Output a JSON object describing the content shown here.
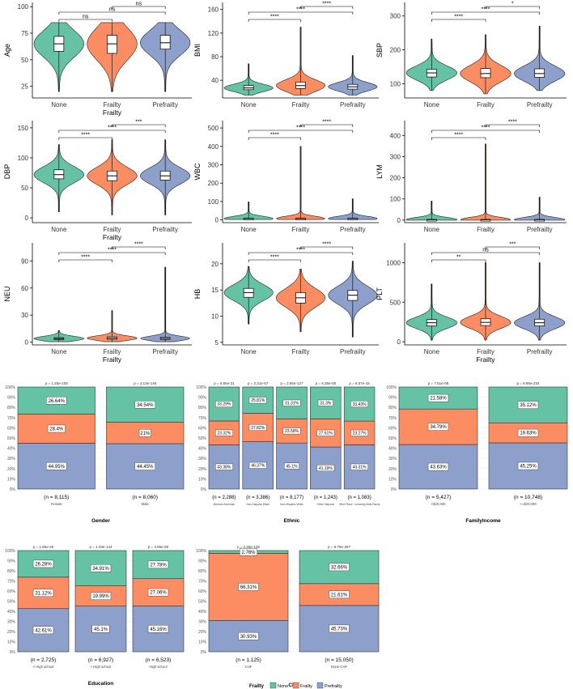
{
  "colors": {
    "none": "#66c2a5",
    "frailty": "#fc8d62",
    "prefrailty": "#8da0cb"
  },
  "legend": {
    "title": "Frailty",
    "items": [
      "None",
      "Frailty",
      "Prefrailty"
    ]
  },
  "chart_data": [
    {
      "type": "violin",
      "ylabel": "Age",
      "xlabel": "Frailty",
      "categories": [
        "None",
        "Frailty",
        "Prefrailty"
      ],
      "yticks": [
        25,
        50,
        75,
        100
      ],
      "ylim": [
        14,
        104
      ],
      "medians": [
        65,
        65,
        66
      ],
      "q1": [
        58,
        56,
        60
      ],
      "q3": [
        72,
        73,
        73
      ],
      "ranges": [
        [
          20,
          85
        ],
        [
          20,
          85
        ],
        [
          20,
          85
        ]
      ],
      "significance": [
        {
          "pair": [
            0,
            1
          ],
          "label": "ns",
          "level": 1
        },
        {
          "pair": [
            0,
            2
          ],
          "label": "ns",
          "level": 2
        },
        {
          "pair": [
            1,
            2
          ],
          "label": "ns",
          "level": 3
        }
      ]
    },
    {
      "type": "violin",
      "ylabel": "BMI",
      "xlabel": "",
      "categories": [
        "None",
        "Frailty",
        "Prefrailty"
      ],
      "yticks": [
        40,
        80,
        120,
        160
      ],
      "ylim": [
        10,
        172
      ],
      "medians": [
        27,
        31,
        29
      ],
      "q1": [
        24,
        26,
        25
      ],
      "q3": [
        31,
        37,
        33
      ],
      "ranges": [
        [
          15,
          68
        ],
        [
          15,
          130
        ],
        [
          15,
          82
        ]
      ],
      "significance": [
        {
          "pair": [
            0,
            1
          ],
          "label": "****",
          "level": 1
        },
        {
          "pair": [
            0,
            2
          ],
          "label": "****",
          "level": 2
        },
        {
          "pair": [
            1,
            2
          ],
          "label": "****",
          "level": 3
        }
      ]
    },
    {
      "type": "violin",
      "ylabel": "SBP",
      "xlabel": "",
      "categories": [
        "None",
        "Frailty",
        "Prefrailty"
      ],
      "yticks": [
        100,
        200,
        300
      ],
      "ylim": [
        58,
        340
      ],
      "medians": [
        132,
        130,
        130
      ],
      "q1": [
        120,
        118,
        119
      ],
      "q3": [
        143,
        145,
        144
      ],
      "ranges": [
        [
          80,
          232
        ],
        [
          70,
          245
        ],
        [
          80,
          270
        ]
      ],
      "significance": [
        {
          "pair": [
            0,
            1
          ],
          "label": "****",
          "level": 1
        },
        {
          "pair": [
            0,
            2
          ],
          "label": "****",
          "level": 2
        },
        {
          "pair": [
            1,
            2
          ],
          "label": "*",
          "level": 3
        }
      ]
    },
    {
      "type": "violin",
      "ylabel": "DBP",
      "xlabel": "Frailty",
      "categories": [
        "None",
        "Frailty",
        "Prefrailty"
      ],
      "yticks": [
        0,
        50,
        100,
        150
      ],
      "ylim": [
        -8,
        162
      ],
      "medians": [
        72,
        70,
        70
      ],
      "q1": [
        65,
        62,
        63
      ],
      "q3": [
        80,
        78,
        78
      ],
      "ranges": [
        [
          10,
          122
        ],
        [
          5,
          130
        ],
        [
          5,
          130
        ]
      ],
      "significance": [
        {
          "pair": [
            0,
            1
          ],
          "label": "****",
          "level": 1
        },
        {
          "pair": [
            0,
            2
          ],
          "label": "****",
          "level": 2
        },
        {
          "pair": [
            1,
            2
          ],
          "label": "***",
          "level": 3
        }
      ]
    },
    {
      "type": "violin",
      "ylabel": "WBC",
      "xlabel": "",
      "categories": [
        "None",
        "Frailty",
        "Prefrailty"
      ],
      "yticks": [
        0,
        100,
        200,
        300,
        400,
        500
      ],
      "ylim": [
        -15,
        540
      ],
      "medians": [
        7,
        7,
        7
      ],
      "q1": [
        5,
        6,
        5
      ],
      "q3": [
        9,
        9,
        9
      ],
      "ranges": [
        [
          2,
          98
        ],
        [
          2,
          400
        ],
        [
          2,
          115
        ]
      ],
      "significance": [
        {
          "pair": [
            0,
            1
          ],
          "label": "****",
          "level": 1
        },
        {
          "pair": [
            0,
            2
          ],
          "label": "****",
          "level": 2
        },
        {
          "pair": [
            1,
            2
          ],
          "label": "****",
          "level": 3
        }
      ]
    },
    {
      "type": "violin",
      "ylabel": "LYM",
      "xlabel": "",
      "categories": [
        "None",
        "Frailty",
        "Prefrailty"
      ],
      "yticks": [
        0,
        100,
        200,
        300,
        400
      ],
      "ylim": [
        -12,
        470
      ],
      "medians": [
        2,
        2,
        2
      ],
      "q1": [
        1,
        1,
        1
      ],
      "q3": [
        3,
        3,
        3
      ],
      "ranges": [
        [
          0,
          90
        ],
        [
          0,
          360
        ],
        [
          0,
          108
        ]
      ],
      "significance": [
        {
          "pair": [
            0,
            1
          ],
          "label": "****",
          "level": 1
        },
        {
          "pair": [
            0,
            2
          ],
          "label": "****",
          "level": 2
        },
        {
          "pair": [
            1,
            2
          ],
          "label": "****",
          "level": 3
        }
      ]
    },
    {
      "type": "violin",
      "ylabel": "NEU",
      "xlabel": "Frailty",
      "categories": [
        "None",
        "Frailty",
        "Prefrailty"
      ],
      "yticks": [
        0,
        30,
        60,
        90
      ],
      "ylim": [
        -3,
        110
      ],
      "medians": [
        4,
        4.5,
        4.2
      ],
      "q1": [
        3,
        3.2,
        3.1
      ],
      "q3": [
        5,
        6,
        5.5
      ],
      "ranges": [
        [
          0.5,
          13
        ],
        [
          0.5,
          35
        ],
        [
          0.5,
          83
        ]
      ],
      "significance": [
        {
          "pair": [
            0,
            1
          ],
          "label": "****",
          "level": 1
        },
        {
          "pair": [
            0,
            2
          ],
          "label": "****",
          "level": 2
        },
        {
          "pair": [
            1,
            2
          ],
          "label": "****",
          "level": 3
        }
      ]
    },
    {
      "type": "violin",
      "ylabel": "HB",
      "xlabel": "",
      "categories": [
        "None",
        "Frailty",
        "Prefrailty"
      ],
      "yticks": [
        5,
        10,
        15,
        20
      ],
      "ylim": [
        4.5,
        24
      ],
      "medians": [
        14.5,
        13.5,
        14
      ],
      "q1": [
        13.6,
        12.5,
        13
      ],
      "q3": [
        15.3,
        14.5,
        14.9
      ],
      "ranges": [
        [
          8.5,
          19.5
        ],
        [
          7,
          19
        ],
        [
          6,
          20.5
        ]
      ],
      "significance": [
        {
          "pair": [
            0,
            1
          ],
          "label": "****",
          "level": 1
        },
        {
          "pair": [
            0,
            2
          ],
          "label": "****",
          "level": 2
        },
        {
          "pair": [
            1,
            2
          ],
          "label": "****",
          "level": 3
        }
      ]
    },
    {
      "type": "violin",
      "ylabel": "PLT",
      "xlabel": "Frailty",
      "categories": [
        "None",
        "Frailty",
        "Prefrailty"
      ],
      "yticks": [
        0,
        500,
        1000
      ],
      "ylim": [
        -40,
        1250
      ],
      "medians": [
        240,
        245,
        240
      ],
      "q1": [
        200,
        205,
        200
      ],
      "q3": [
        280,
        290,
        285
      ],
      "ranges": [
        [
          20,
          730
        ],
        [
          20,
          1000
        ],
        [
          20,
          1000
        ]
      ],
      "significance": [
        {
          "pair": [
            0,
            1
          ],
          "label": "**",
          "level": 1
        },
        {
          "pair": [
            0,
            2
          ],
          "label": "ns",
          "level": 2
        },
        {
          "pair": [
            1,
            2
          ],
          "label": "***",
          "level": 3
        }
      ]
    },
    {
      "type": "stacked_bar",
      "title": "Gender",
      "yticks": [
        "0%",
        "10%",
        "20%",
        "30%",
        "40%",
        "50%",
        "60%",
        "70%",
        "80%",
        "90%",
        "100%"
      ],
      "bars": [
        {
          "label": "Female",
          "n": "(n = 8,115)",
          "p": "p = 1.26e-109",
          "prefrailty": 44.95,
          "frailty": 28.4,
          "none": 26.64,
          "prefrailty_label": "44.95%",
          "frailty_label": "28.4%",
          "none_label": "26.64%"
        },
        {
          "label": "Male",
          "n": "(n = 8,060)",
          "p": "p = 3.13e-146",
          "prefrailty": 44.45,
          "frailty": 21,
          "none": 34.54,
          "prefrailty_label": "44.45%",
          "frailty_label": "21%",
          "none_label": "34.54%"
        }
      ]
    },
    {
      "type": "stacked_bar",
      "title": "Ethnic",
      "yticks": [
        "0%",
        "10%",
        "20%",
        "30%",
        "40%",
        "50%",
        "60%",
        "70%",
        "80%",
        "90%",
        "100%"
      ],
      "bars": [
        {
          "label": "Mexican American",
          "n": "(n = 2,288)",
          "p": "p = 9.55e-31",
          "prefrailty": 43.38,
          "frailty": 23.32,
          "none": 33.29,
          "prefrailty_label": "43.38%",
          "frailty_label": "23.32%",
          "none_label": "33.29%"
        },
        {
          "label": "Non-Hispanic Black",
          "n": "(n = 3,386)",
          "p": "p = 2.21e-57",
          "prefrailty": 46.37,
          "frailty": 27.82,
          "none": 25.81,
          "prefrailty_label": "46.37%",
          "frailty_label": "27.82%",
          "none_label": "25.81%"
        },
        {
          "label": "Non-Hispanic White",
          "n": "(n = 8,177)",
          "p": "p = 2.86e-127",
          "prefrailty": 45.1,
          "frailty": 23.59,
          "none": 31.31,
          "prefrailty_label": "45.1%",
          "frailty_label": "23.59%",
          "none_label": "31.31%"
        },
        {
          "label": "Other Hispanic",
          "n": "(n = 1,243)",
          "p": "p = 6.36e-09",
          "prefrailty": 41.19,
          "frailty": 27.51,
          "none": 31.3,
          "prefrailty_label": "41.19%",
          "frailty_label": "27.51%",
          "none_label": "31.3%"
        },
        {
          "label": "Other Race - Including Multi-Racial",
          "n": "(n = 1,083)",
          "p": "p = 6.07e-15",
          "prefrailty": 43.31,
          "frailty": 23.27,
          "none": 33.43,
          "prefrailty_label": "43.31%",
          "frailty_label": "23.27%",
          "none_label": "33.43%"
        }
      ]
    },
    {
      "type": "stacked_bar",
      "title": "FamilyIncome",
      "yticks": [
        "0%",
        "10%",
        "20%",
        "30%",
        "40%",
        "50%",
        "60%",
        "70%",
        "80%",
        "90%",
        "100%"
      ],
      "bars": [
        {
          "label": "<$20,000",
          "n": "(n = 5,427)",
          "p": "p = 7.61e-08",
          "prefrailty": 43.63,
          "frailty": 34.79,
          "none": 21.58,
          "prefrailty_label": "43.63%",
          "frailty_label": "34.79%",
          "none_label": "21.58%"
        },
        {
          "label": ">=$20,000",
          "n": "(n = 10,748)",
          "p": "p = 8.98e-234",
          "prefrailty": 45.25,
          "frailty": 19.63,
          "none": 35.12,
          "prefrailty_label": "45.25%",
          "frailty_label": "19.63%",
          "none_label": "35.12%"
        }
      ]
    },
    {
      "type": "stacked_bar",
      "title": "Education",
      "yticks": [
        "0%",
        "10%",
        "20%",
        "30%",
        "40%",
        "50%",
        "60%",
        "70%",
        "80%",
        "90%",
        "100%"
      ],
      "bars": [
        {
          "label": "< High school",
          "n": "(n = 2,725)",
          "p": "p = 1.86e-25",
          "prefrailty": 42.61,
          "frailty": 31.12,
          "none": 26.28,
          "prefrailty_label": "42.61%",
          "frailty_label": "31.12%",
          "none_label": "26.28%"
        },
        {
          "label": "> High school",
          "n": "(n = 6,927)",
          "p": "p = 1.33e-144",
          "prefrailty": 45.1,
          "frailty": 19.99,
          "none": 34.91,
          "prefrailty_label": "45.1%",
          "frailty_label": "19.99%",
          "none_label": "34.91%"
        },
        {
          "label": "High school",
          "n": "(n = 6,523)",
          "p": "p = 4.86e-60",
          "prefrailty": 45.16,
          "frailty": 27.06,
          "none": 27.78,
          "prefrailty_label": "45.16%",
          "frailty_label": "27.06%",
          "none_label": "27.78%"
        }
      ]
    },
    {
      "type": "stacked_bar",
      "title": "CHF",
      "yticks": [
        "0%",
        "10%",
        "20%",
        "30%",
        "40%",
        "50%",
        "60%",
        "70%",
        "80%",
        "90%",
        "100%"
      ],
      "bars": [
        {
          "label": "CHF",
          "n": "(n = 1,125)",
          "p": "p = 2.25e-145",
          "prefrailty": 30.93,
          "frailty": 66.31,
          "none": 2.76,
          "prefrailty_label": "30.93%",
          "frailty_label": "66.31%",
          "none_label": "2.76%"
        },
        {
          "label": "None-CHF",
          "n": "(n = 15,050)",
          "p": "p = 9.76e-287",
          "prefrailty": 45.73,
          "frailty": 21.61,
          "none": 32.66,
          "prefrailty_label": "45.73%",
          "frailty_label": "21.61%",
          "none_label": "32.66%"
        }
      ]
    }
  ]
}
